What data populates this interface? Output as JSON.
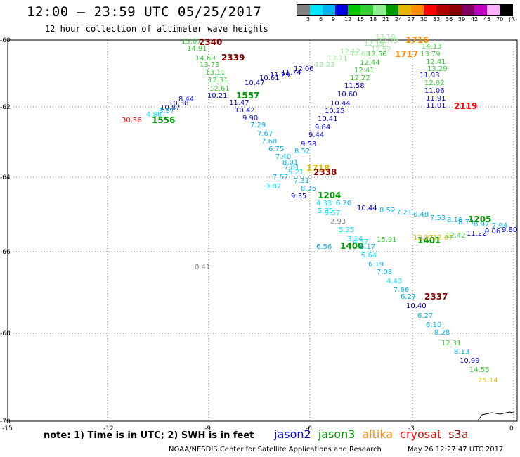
{
  "title": "12:00 – 23:59 UTC 05/25/2017",
  "subtitle": "12 hour collection of altimeter wave heights",
  "legend": {
    "colors": [
      "#808080",
      "#00e5ff",
      "#00b2ee",
      "#0000e0",
      "#00c800",
      "#32cd32",
      "#90ee90",
      "#009900",
      "#e5b800",
      "#ff8c00",
      "#ff0000",
      "#b30000",
      "#8b0000",
      "#800060",
      "#c000c0",
      "#ffb0ff",
      "#000000"
    ],
    "labels": [
      "3",
      "6",
      "9",
      "12",
      "15",
      "18",
      "21",
      "24",
      "27",
      "30",
      "33",
      "36",
      "39",
      "42",
      "45",
      "70",
      "(ft)"
    ]
  },
  "axes": {
    "x_ticks": [
      "-15",
      "-12",
      "-9",
      "-6",
      "-3",
      "0"
    ],
    "y_ticks": [
      "-60",
      "-62",
      "-64",
      "-66",
      "-68",
      "-70"
    ]
  },
  "observations": [
    {
      "text": "15.07",
      "color": "#32cd32"
    },
    {
      "text": "14.91",
      "color": "#32cd32"
    },
    {
      "text": "14.60",
      "color": "#32cd32"
    },
    {
      "text": "13.73",
      "color": "#32cd32"
    },
    {
      "text": "13.11",
      "color": "#32cd32"
    },
    {
      "text": "12.31",
      "color": "#32cd32"
    },
    {
      "text": "12.61",
      "color": "#32cd32"
    },
    {
      "text": "2340",
      "color": "#8b0000"
    },
    {
      "text": "2339",
      "color": "#8b0000"
    },
    {
      "text": "11.47",
      "color": "#0000e0"
    },
    {
      "text": "10.42",
      "color": "#0000e0"
    },
    {
      "text": "9.90",
      "color": "#0000e0"
    },
    {
      "text": "1557",
      "color": "#009900"
    },
    {
      "text": "10.21",
      "color": "#0000e0"
    },
    {
      "text": "10.47",
      "color": "#0000e0"
    },
    {
      "text": "10.61",
      "color": "#0000e0"
    },
    {
      "text": "11.29",
      "color": "#0000e0"
    },
    {
      "text": "11.74",
      "color": "#0000e0"
    },
    {
      "text": "12.06",
      "color": "#0000e0"
    },
    {
      "text": "10.38",
      "color": "#0000e0"
    },
    {
      "text": "10.87",
      "color": "#0000e0"
    },
    {
      "text": "8.44",
      "color": "#0000e0"
    },
    {
      "text": "8.97",
      "color": "#00b2ee"
    },
    {
      "text": "4.86",
      "color": "#00e5ff"
    },
    {
      "text": "1556",
      "color": "#009900"
    },
    {
      "text": "30.56",
      "color": "#ff0000"
    },
    {
      "text": "7.29",
      "color": "#00b2ee"
    },
    {
      "text": "7.67",
      "color": "#00b2ee"
    },
    {
      "text": "7.60",
      "color": "#00b2ee"
    },
    {
      "text": "6.75",
      "color": "#00b2ee"
    },
    {
      "text": "7.40",
      "color": "#00b2ee"
    },
    {
      "text": "8.01",
      "color": "#00b2ee"
    },
    {
      "text": "7.81",
      "color": "#00b2ee"
    },
    {
      "text": "7.57",
      "color": "#00b2ee"
    },
    {
      "text": "3.87",
      "color": "#00e5ff"
    },
    {
      "text": "5.21",
      "color": "#00e5ff"
    },
    {
      "text": "7.31",
      "color": "#00b2ee"
    },
    {
      "text": "8.52",
      "color": "#00b2ee"
    },
    {
      "text": "1718",
      "color": "#e5b800"
    },
    {
      "text": "2338",
      "color": "#8b0000"
    },
    {
      "text": "9.58",
      "color": "#0000e0"
    },
    {
      "text": "9.44",
      "color": "#0000e0"
    },
    {
      "text": "9.84",
      "color": "#0000e0"
    },
    {
      "text": "10.41",
      "color": "#0000e0"
    },
    {
      "text": "10.25",
      "color": "#0000e0"
    },
    {
      "text": "10.44",
      "color": "#0000e0"
    },
    {
      "text": "10.60",
      "color": "#0000e0"
    },
    {
      "text": "11.58",
      "color": "#0000e0"
    },
    {
      "text": "12.22",
      "color": "#32cd32"
    },
    {
      "text": "12.41",
      "color": "#32cd32"
    },
    {
      "text": "12.44",
      "color": "#32cd32"
    },
    {
      "text": "12.56",
      "color": "#32cd32"
    },
    {
      "text": "12.52",
      "color": "#90ee90"
    },
    {
      "text": "12.62",
      "color": "#90ee90"
    },
    {
      "text": "12.12",
      "color": "#90ee90"
    },
    {
      "text": "13.11",
      "color": "#90ee90"
    },
    {
      "text": "13.23",
      "color": "#90ee90"
    },
    {
      "text": "12.19",
      "color": "#90ee90"
    },
    {
      "text": "12.79",
      "color": "#90ee90"
    },
    {
      "text": "13.19",
      "color": "#90ee90"
    },
    {
      "text": "1716",
      "color": "#ff8c00"
    },
    {
      "text": "1717",
      "color": "#ff8c00"
    },
    {
      "text": "14.13",
      "color": "#32cd32"
    },
    {
      "text": "13.79",
      "color": "#32cd32"
    },
    {
      "text": "12.41",
      "color": "#32cd32"
    },
    {
      "text": "13.29",
      "color": "#32cd32"
    },
    {
      "text": "12.02",
      "color": "#32cd32"
    },
    {
      "text": "11.93",
      "color": "#0000e0"
    },
    {
      "text": "11.06",
      "color": "#0000e0"
    },
    {
      "text": "11.91",
      "color": "#0000e0"
    },
    {
      "text": "11.01",
      "color": "#0000e0"
    },
    {
      "text": "2119",
      "color": "#ff0000"
    },
    {
      "text": "8.35",
      "color": "#00b2ee"
    },
    {
      "text": "9.35",
      "color": "#0000e0"
    },
    {
      "text": "1204",
      "color": "#009900"
    },
    {
      "text": "4.33",
      "color": "#00e5ff"
    },
    {
      "text": "5.35",
      "color": "#00e5ff"
    },
    {
      "text": "6.20",
      "color": "#00b2ee"
    },
    {
      "text": "5.57",
      "color": "#00e5ff"
    },
    {
      "text": "10.44",
      "color": "#0000e0"
    },
    {
      "text": "8.52",
      "color": "#00b2ee"
    },
    {
      "text": "7.21",
      "color": "#00b2ee"
    },
    {
      "text": "6.48",
      "color": "#00b2ee"
    },
    {
      "text": "7.53",
      "color": "#00b2ee"
    },
    {
      "text": "8.16",
      "color": "#00b2ee"
    },
    {
      "text": "8.73",
      "color": "#00b2ee"
    },
    {
      "text": "8.97",
      "color": "#00b2ee"
    },
    {
      "text": "7.94",
      "color": "#00b2ee"
    },
    {
      "text": "1205",
      "color": "#009900"
    },
    {
      "text": "11.22",
      "color": "#0000e0"
    },
    {
      "text": "9.06",
      "color": "#0000e0"
    },
    {
      "text": "9.80",
      "color": "#0000e0"
    },
    {
      "text": "2.93",
      "color": "#808080"
    },
    {
      "text": "5.25",
      "color": "#00e5ff"
    },
    {
      "text": "3.14",
      "color": "#00e5ff"
    },
    {
      "text": "4.57",
      "color": "#00e5ff"
    },
    {
      "text": "6.56",
      "color": "#00b2ee"
    },
    {
      "text": "1400",
      "color": "#009900"
    },
    {
      "text": "6.17",
      "color": "#00b2ee"
    },
    {
      "text": "15.91",
      "color": "#32cd32"
    },
    {
      "text": "1401",
      "color": "#009900"
    },
    {
      "text": "12.97",
      "color": "#e5b800"
    },
    {
      "text": "12.67",
      "color": "#e5b800"
    },
    {
      "text": "12.42",
      "color": "#32cd32"
    },
    {
      "text": "0.41",
      "color": "#808080"
    },
    {
      "text": "5.64",
      "color": "#00e5ff"
    },
    {
      "text": "6.19",
      "color": "#00b2ee"
    },
    {
      "text": "7.08",
      "color": "#00b2ee"
    },
    {
      "text": "4.43",
      "color": "#00e5ff"
    },
    {
      "text": "7.66",
      "color": "#00b2ee"
    },
    {
      "text": "6.27",
      "color": "#00b2ee"
    },
    {
      "text": "2337",
      "color": "#8b0000"
    },
    {
      "text": "10.40",
      "color": "#0000e0"
    },
    {
      "text": "6.27",
      "color": "#00b2ee"
    },
    {
      "text": "6.10",
      "color": "#00b2ee"
    },
    {
      "text": "8.28",
      "color": "#00b2ee"
    },
    {
      "text": "12.31",
      "color": "#32cd32"
    },
    {
      "text": "8.13",
      "color": "#00b2ee"
    },
    {
      "text": "10.99",
      "color": "#0000e0"
    },
    {
      "text": "14.55",
      "color": "#32cd32"
    },
    {
      "text": "25.14",
      "color": "#e5b800"
    }
  ],
  "note": "note: 1) Time is in UTC; 2) SWH is in feet",
  "satellites": [
    {
      "name": "jason2",
      "color": "#0000e0"
    },
    {
      "name": "jason3",
      "color": "#009900"
    },
    {
      "name": "altika",
      "color": "#ff8c00"
    },
    {
      "name": "cryosat",
      "color": "#ff0000"
    },
    {
      "name": "s3a",
      "color": "#8b0000"
    }
  ],
  "credit": "NOAA/NESDIS Center for Satellite Applications and Research",
  "timestamp": "May 26 12:27:47 UTC 2017"
}
